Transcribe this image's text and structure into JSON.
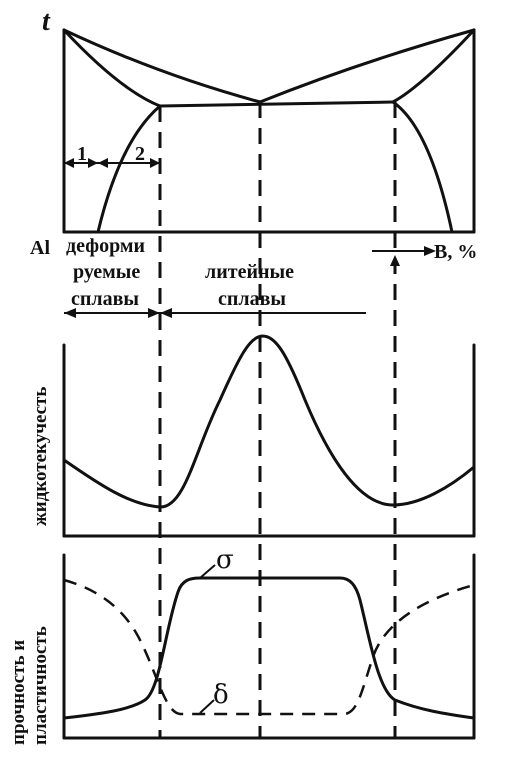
{
  "phase_diagram": {
    "y_axis_symbol": "t",
    "left_component": "Al",
    "right_axis_label": "B, %",
    "region_1": "1",
    "region_2": "2"
  },
  "zones": {
    "wrought_line1": "деформи",
    "wrought_line2": "руемые",
    "wrought_line3": "сплавы",
    "cast_line1": "литейные",
    "cast_line2": "сплавы"
  },
  "fluidity_panel": {
    "y_label": "жидкотекучесть"
  },
  "properties_panel": {
    "y_label_line1": "прочность и",
    "y_label_line2": "пластичность",
    "curve_sigma": "σ",
    "curve_delta": "δ"
  }
}
